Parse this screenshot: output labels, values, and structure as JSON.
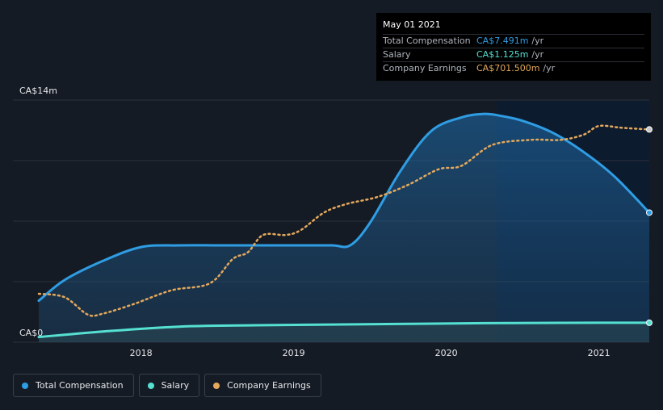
{
  "chart_data": {
    "type": "line",
    "y_tick_labels": [
      "CA$14m",
      "CA$0"
    ],
    "ylim": [
      0,
      14
    ],
    "xlim": [
      2017.33,
      2021.33
    ],
    "x_ticks": [
      2018,
      2019,
      2020,
      2021
    ],
    "x_tick_labels": [
      "2018",
      "2019",
      "2020",
      "2021"
    ],
    "highlight_range": [
      2020.33,
      2021.33
    ],
    "grid": "horizontal",
    "legend_position": "bottom-left",
    "series": [
      {
        "name": "Total Compensation",
        "color": "#2f9de4",
        "style": "solid-area",
        "x": [
          2017.33,
          2017.5,
          2017.75,
          2018.0,
          2018.25,
          2018.5,
          2018.75,
          2019.0,
          2019.25,
          2019.37,
          2019.5,
          2019.7,
          2019.9,
          2020.1,
          2020.25,
          2020.35,
          2020.5,
          2020.7,
          2020.9,
          2021.1,
          2021.33
        ],
        "y": [
          2.4,
          3.6,
          4.7,
          5.5,
          5.6,
          5.6,
          5.6,
          5.6,
          5.6,
          5.6,
          6.9,
          9.9,
          12.2,
          13.0,
          13.2,
          13.1,
          12.8,
          12.1,
          11.0,
          9.6,
          7.491
        ]
      },
      {
        "name": "Salary",
        "color": "#55e0d2",
        "style": "solid-area",
        "x": [
          2017.33,
          2017.75,
          2018.25,
          2018.75,
          2019.25,
          2019.75,
          2020.25,
          2020.75,
          2021.33
        ],
        "y": [
          0.3,
          0.62,
          0.9,
          0.98,
          1.02,
          1.06,
          1.1,
          1.12,
          1.125
        ]
      },
      {
        "name": "Company Earnings",
        "color": "#e3a85c",
        "style": "dotted",
        "x": [
          2017.33,
          2017.5,
          2017.65,
          2017.75,
          2017.95,
          2018.2,
          2018.45,
          2018.6,
          2018.7,
          2018.8,
          2018.95,
          2019.05,
          2019.2,
          2019.35,
          2019.55,
          2019.75,
          2019.95,
          2020.1,
          2020.3,
          2020.55,
          2020.75,
          2020.9,
          2021.0,
          2021.15,
          2021.33
        ],
        "y": [
          2.8,
          2.6,
          1.6,
          1.65,
          2.2,
          3.0,
          3.4,
          4.8,
          5.2,
          6.2,
          6.2,
          6.5,
          7.5,
          8.0,
          8.4,
          9.1,
          10.0,
          10.2,
          11.4,
          11.7,
          11.7,
          12.0,
          12.5,
          12.4,
          12.3
        ]
      }
    ]
  },
  "tooltip": {
    "date": "May 01 2021",
    "rows": [
      {
        "label": "Total Compensation",
        "value": "CA$7.491m",
        "unit": "/yr",
        "color": "#2f9de4"
      },
      {
        "label": "Salary",
        "value": "CA$1.125m",
        "unit": "/yr",
        "color": "#55e0d2"
      },
      {
        "label": "Company Earnings",
        "value": "CA$701.500m",
        "unit": "/yr",
        "color": "#e3a85c"
      }
    ]
  },
  "legend": [
    {
      "label": "Total Compensation",
      "color": "#2f9de4"
    },
    {
      "label": "Salary",
      "color": "#55e0d2"
    },
    {
      "label": "Company Earnings",
      "color": "#e3a85c"
    }
  ]
}
